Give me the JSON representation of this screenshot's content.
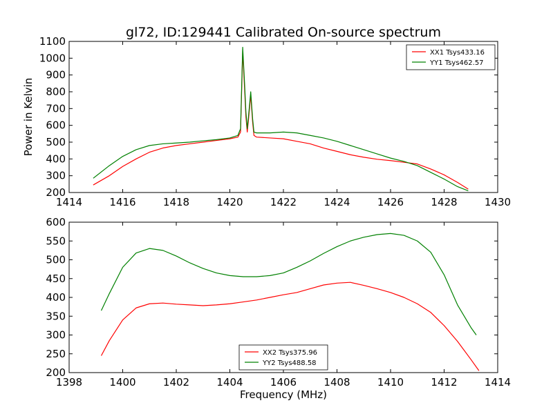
{
  "figure": {
    "title": "gl72, ID:129441 Calibrated On-source spectrum"
  },
  "chart_data": [
    {
      "type": "line",
      "title": "gl72, ID:129441 Calibrated On-source spectrum",
      "xlabel": "",
      "ylabel": "Power in Kelvin",
      "xlim": [
        1414,
        1430
      ],
      "ylim": [
        200,
        1100
      ],
      "xticks": [
        1414,
        1416,
        1418,
        1420,
        1422,
        1424,
        1426,
        1428,
        1430
      ],
      "yticks": [
        200,
        300,
        400,
        500,
        600,
        700,
        800,
        900,
        1000,
        1100
      ],
      "grid": false,
      "legend_position": "top-right",
      "series": [
        {
          "name": "XX1 Tsys433.16",
          "color": "#ff0000",
          "x": [
            1414.9,
            1415.5,
            1416.0,
            1416.5,
            1417.0,
            1417.5,
            1418.0,
            1418.5,
            1419.0,
            1419.5,
            1420.0,
            1420.3,
            1420.4,
            1420.48,
            1420.55,
            1420.6,
            1420.65,
            1420.7,
            1420.78,
            1420.85,
            1420.9,
            1421.0,
            1421.5,
            1422.0,
            1422.5,
            1423.0,
            1423.5,
            1424.0,
            1424.5,
            1425.0,
            1425.5,
            1426.0,
            1426.5,
            1427.0,
            1427.5,
            1428.0,
            1428.5,
            1428.9
          ],
          "values": [
            245,
            300,
            355,
            400,
            440,
            465,
            480,
            490,
            500,
            510,
            520,
            530,
            560,
            1040,
            820,
            650,
            560,
            640,
            780,
            620,
            540,
            530,
            525,
            520,
            505,
            490,
            465,
            445,
            425,
            410,
            398,
            390,
            380,
            370,
            340,
            305,
            260,
            220
          ]
        },
        {
          "name": "YY1 Tsys462.57",
          "color": "#008000",
          "x": [
            1414.9,
            1415.5,
            1416.0,
            1416.5,
            1417.0,
            1417.5,
            1418.0,
            1418.5,
            1419.0,
            1419.5,
            1420.0,
            1420.3,
            1420.4,
            1420.48,
            1420.55,
            1420.6,
            1420.65,
            1420.7,
            1420.78,
            1420.85,
            1420.9,
            1421.0,
            1421.5,
            1422.0,
            1422.5,
            1423.0,
            1423.5,
            1424.0,
            1424.5,
            1425.0,
            1425.5,
            1426.0,
            1426.5,
            1427.0,
            1427.5,
            1428.0,
            1428.5,
            1428.9
          ],
          "values": [
            285,
            360,
            415,
            455,
            480,
            490,
            495,
            500,
            508,
            515,
            525,
            540,
            580,
            1065,
            850,
            680,
            580,
            660,
            800,
            640,
            560,
            555,
            555,
            560,
            555,
            540,
            525,
            505,
            480,
            455,
            430,
            405,
            385,
            360,
            320,
            280,
            235,
            210
          ]
        }
      ]
    },
    {
      "type": "line",
      "title": "",
      "xlabel": "Frequency (MHz)",
      "ylabel": "",
      "xlim": [
        1398,
        1414
      ],
      "ylim": [
        200,
        600
      ],
      "xticks": [
        1398,
        1400,
        1402,
        1404,
        1406,
        1408,
        1410,
        1412,
        1414
      ],
      "yticks": [
        200,
        250,
        300,
        350,
        400,
        450,
        500,
        550,
        600
      ],
      "grid": false,
      "legend_position": "bottom-center",
      "series": [
        {
          "name": "XX2 Tsys375.96",
          "color": "#ff0000",
          "x": [
            1399.2,
            1399.5,
            1400.0,
            1400.5,
            1401.0,
            1401.5,
            1402.0,
            1402.5,
            1403.0,
            1403.5,
            1404.0,
            1404.5,
            1405.0,
            1405.5,
            1406.0,
            1406.5,
            1407.0,
            1407.5,
            1408.0,
            1408.5,
            1409.0,
            1409.5,
            1410.0,
            1410.5,
            1411.0,
            1411.5,
            1412.0,
            1412.5,
            1413.0,
            1413.3
          ],
          "values": [
            245,
            285,
            340,
            372,
            383,
            385,
            382,
            380,
            378,
            380,
            383,
            388,
            393,
            400,
            407,
            413,
            423,
            433,
            438,
            440,
            432,
            423,
            413,
            400,
            383,
            360,
            325,
            283,
            235,
            205
          ]
        },
        {
          "name": "YY2 Tsys488.58",
          "color": "#008000",
          "x": [
            1399.2,
            1399.5,
            1400.0,
            1400.5,
            1401.0,
            1401.5,
            1402.0,
            1402.5,
            1403.0,
            1403.5,
            1404.0,
            1404.5,
            1405.0,
            1405.5,
            1406.0,
            1406.5,
            1407.0,
            1407.5,
            1408.0,
            1408.5,
            1409.0,
            1409.5,
            1410.0,
            1410.5,
            1411.0,
            1411.5,
            1412.0,
            1412.5,
            1413.0,
            1413.2
          ],
          "values": [
            365,
            410,
            480,
            518,
            530,
            525,
            510,
            492,
            477,
            465,
            458,
            455,
            455,
            458,
            465,
            480,
            497,
            517,
            535,
            550,
            560,
            567,
            570,
            565,
            550,
            520,
            460,
            380,
            320,
            300
          ]
        }
      ]
    }
  ]
}
